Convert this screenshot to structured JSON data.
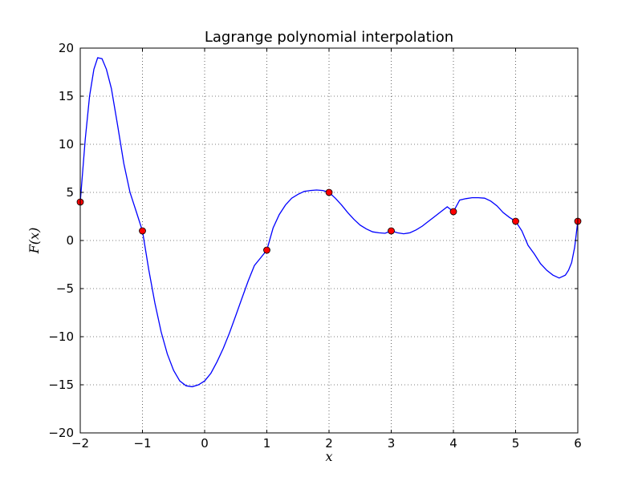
{
  "chart_data": {
    "type": "line",
    "title": "Lagrange polynomial interpolation",
    "xlabel": "x",
    "ylabel": "F(x)",
    "xlim": [
      -2,
      6
    ],
    "ylim": [
      -20,
      20
    ],
    "x_ticks": [
      -2,
      -1,
      0,
      1,
      2,
      3,
      4,
      5,
      6
    ],
    "y_ticks": [
      -20,
      -15,
      -10,
      -5,
      0,
      5,
      10,
      15,
      20
    ],
    "x_tick_labels": [
      "−2",
      "−1",
      "0",
      "1",
      "2",
      "3",
      "4",
      "5",
      "6"
    ],
    "y_tick_labels": [
      "−20",
      "−15",
      "−10",
      "−5",
      "0",
      "5",
      "10",
      "15",
      "20"
    ],
    "grid": true,
    "series": [
      {
        "kind": "curve",
        "color": "#0000ff",
        "x": [
          -2.0,
          -1.92,
          -1.85,
          -1.78,
          -1.72,
          -1.65,
          -1.58,
          -1.5,
          -1.4,
          -1.3,
          -1.2,
          -1.1,
          -1.0,
          -0.9,
          -0.8,
          -0.7,
          -0.6,
          -0.5,
          -0.4,
          -0.3,
          -0.2,
          -0.1,
          0.0,
          0.1,
          0.2,
          0.3,
          0.4,
          0.5,
          0.6,
          0.7,
          0.8,
          0.9,
          1.0,
          1.1,
          1.2,
          1.3,
          1.4,
          1.5,
          1.6,
          1.7,
          1.8,
          1.9,
          2.0,
          2.1,
          2.2,
          2.3,
          2.4,
          2.5,
          2.6,
          2.7,
          2.8,
          2.9,
          3.0,
          3.1,
          3.2,
          3.3,
          3.4,
          3.5,
          3.6,
          3.7,
          3.8,
          3.9,
          4.0,
          4.1,
          4.2,
          4.3,
          4.4,
          4.5,
          4.6,
          4.7,
          4.8,
          4.9,
          5.0,
          5.1,
          5.2,
          5.3,
          5.4,
          5.5,
          5.6,
          5.7,
          5.8,
          5.85,
          5.9,
          5.95,
          6.0
        ],
        "y": [
          4.0,
          10.5,
          15.0,
          17.8,
          19.0,
          18.9,
          17.8,
          15.8,
          12.0,
          8.0,
          5.0,
          3.0,
          1.0,
          -3.0,
          -6.5,
          -9.5,
          -11.8,
          -13.5,
          -14.6,
          -15.1,
          -15.2,
          -15.0,
          -14.6,
          -13.8,
          -12.6,
          -11.2,
          -9.6,
          -7.8,
          -6.0,
          -4.2,
          -2.6,
          -1.8,
          -1.0,
          1.3,
          2.7,
          3.7,
          4.4,
          4.8,
          5.1,
          5.2,
          5.25,
          5.2,
          5.0,
          4.4,
          3.7,
          2.9,
          2.2,
          1.6,
          1.2,
          0.9,
          0.8,
          0.75,
          1.0,
          0.8,
          0.7,
          0.8,
          1.1,
          1.5,
          2.0,
          2.5,
          3.0,
          3.5,
          3.0,
          4.2,
          4.35,
          4.45,
          4.45,
          4.4,
          4.1,
          3.6,
          2.9,
          2.4,
          2.0,
          1.0,
          -0.5,
          -1.4,
          -2.4,
          -3.1,
          -3.6,
          -3.9,
          -3.6,
          -3.1,
          -2.3,
          -0.7,
          2.0
        ]
      },
      {
        "kind": "points",
        "face_color": "#ff0000",
        "edge_color": "#000000",
        "x": [
          -2,
          -1,
          1,
          2,
          3,
          4,
          5,
          6
        ],
        "y": [
          4,
          1,
          -1,
          5,
          1,
          3,
          2,
          2
        ]
      }
    ]
  }
}
